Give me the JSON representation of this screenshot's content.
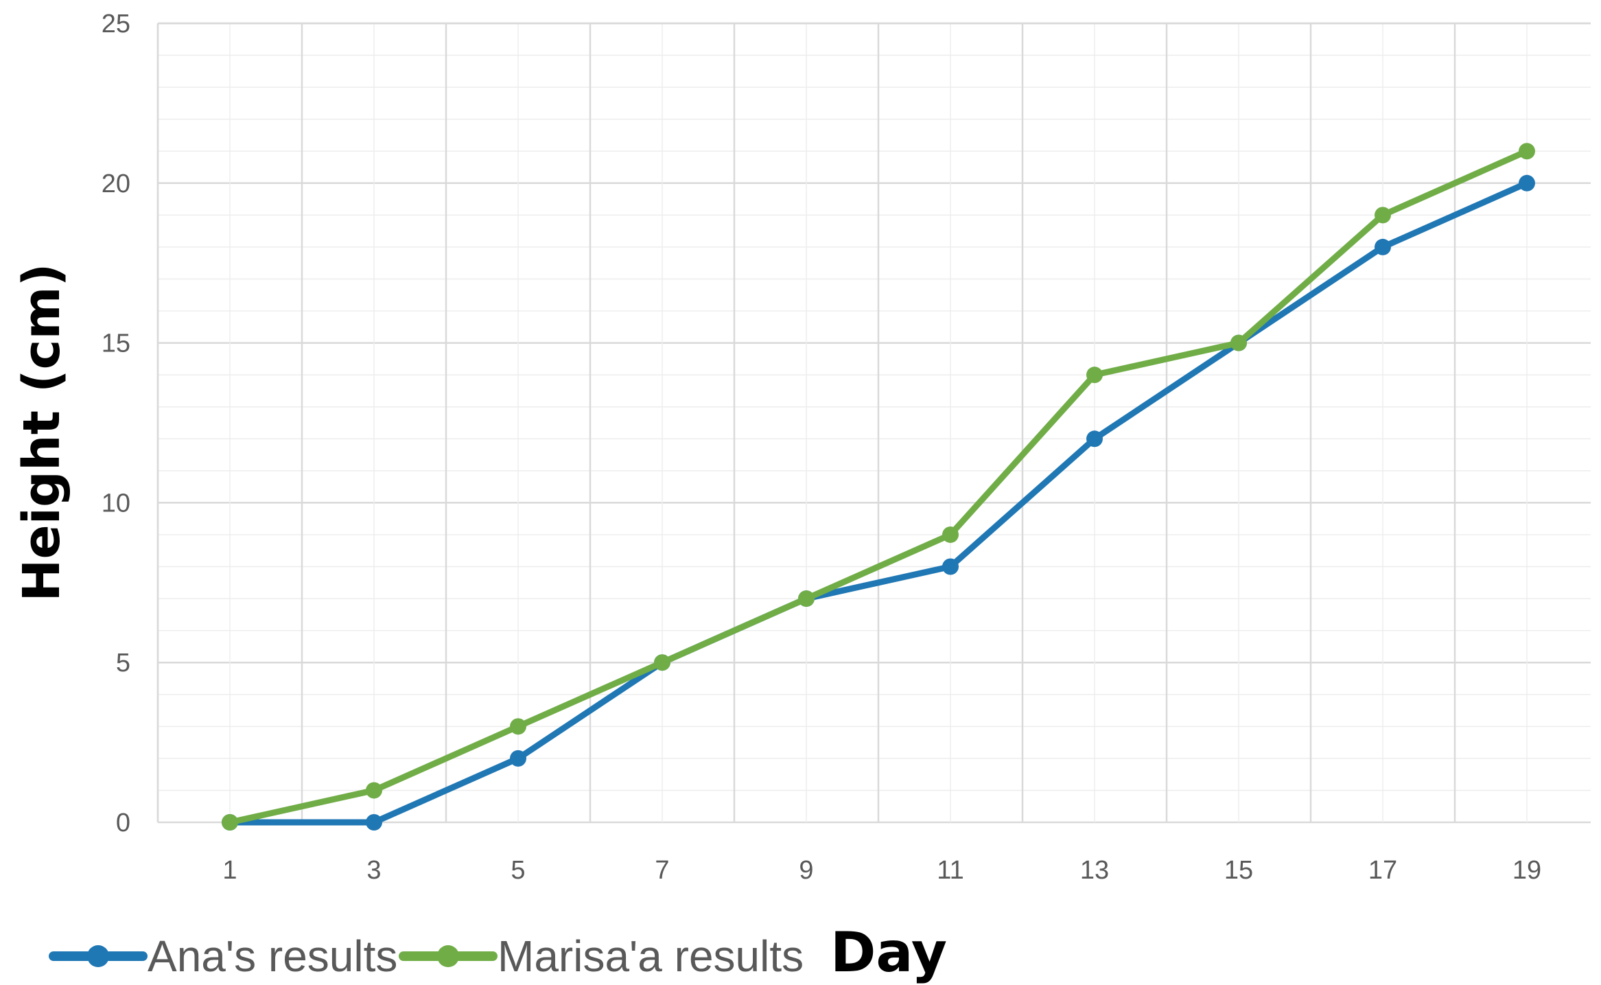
{
  "chart_data": {
    "type": "line",
    "title": "",
    "xlabel": "Day",
    "ylabel": "Height (cm)",
    "x": [
      1,
      3,
      5,
      7,
      9,
      11,
      13,
      15,
      17,
      19
    ],
    "x_tick_labels": [
      "1",
      "3",
      "5",
      "7",
      "9",
      "11",
      "13",
      "15",
      "17",
      "19"
    ],
    "ylim": [
      0,
      25
    ],
    "y_ticks": [
      0,
      5,
      10,
      15,
      20,
      25
    ],
    "y_tick_labels": [
      "0",
      "5",
      "10",
      "15",
      "20",
      "25"
    ],
    "grid": true,
    "legend_position": "bottom-left",
    "series": [
      {
        "name": "Ana's results",
        "color": "#1F77B4",
        "values": [
          0,
          0,
          2,
          5,
          7,
          8,
          12,
          15,
          18,
          20
        ]
      },
      {
        "name": "Marisa'a results",
        "color": "#70AD47",
        "values": [
          0,
          1,
          3,
          5,
          7,
          9,
          14,
          15,
          19,
          21
        ]
      }
    ],
    "colors": {
      "grid_major": "#D9D9D9",
      "grid_minor": "#EDEDED",
      "tick_text": "#595959",
      "axis_title": "#000000"
    }
  }
}
